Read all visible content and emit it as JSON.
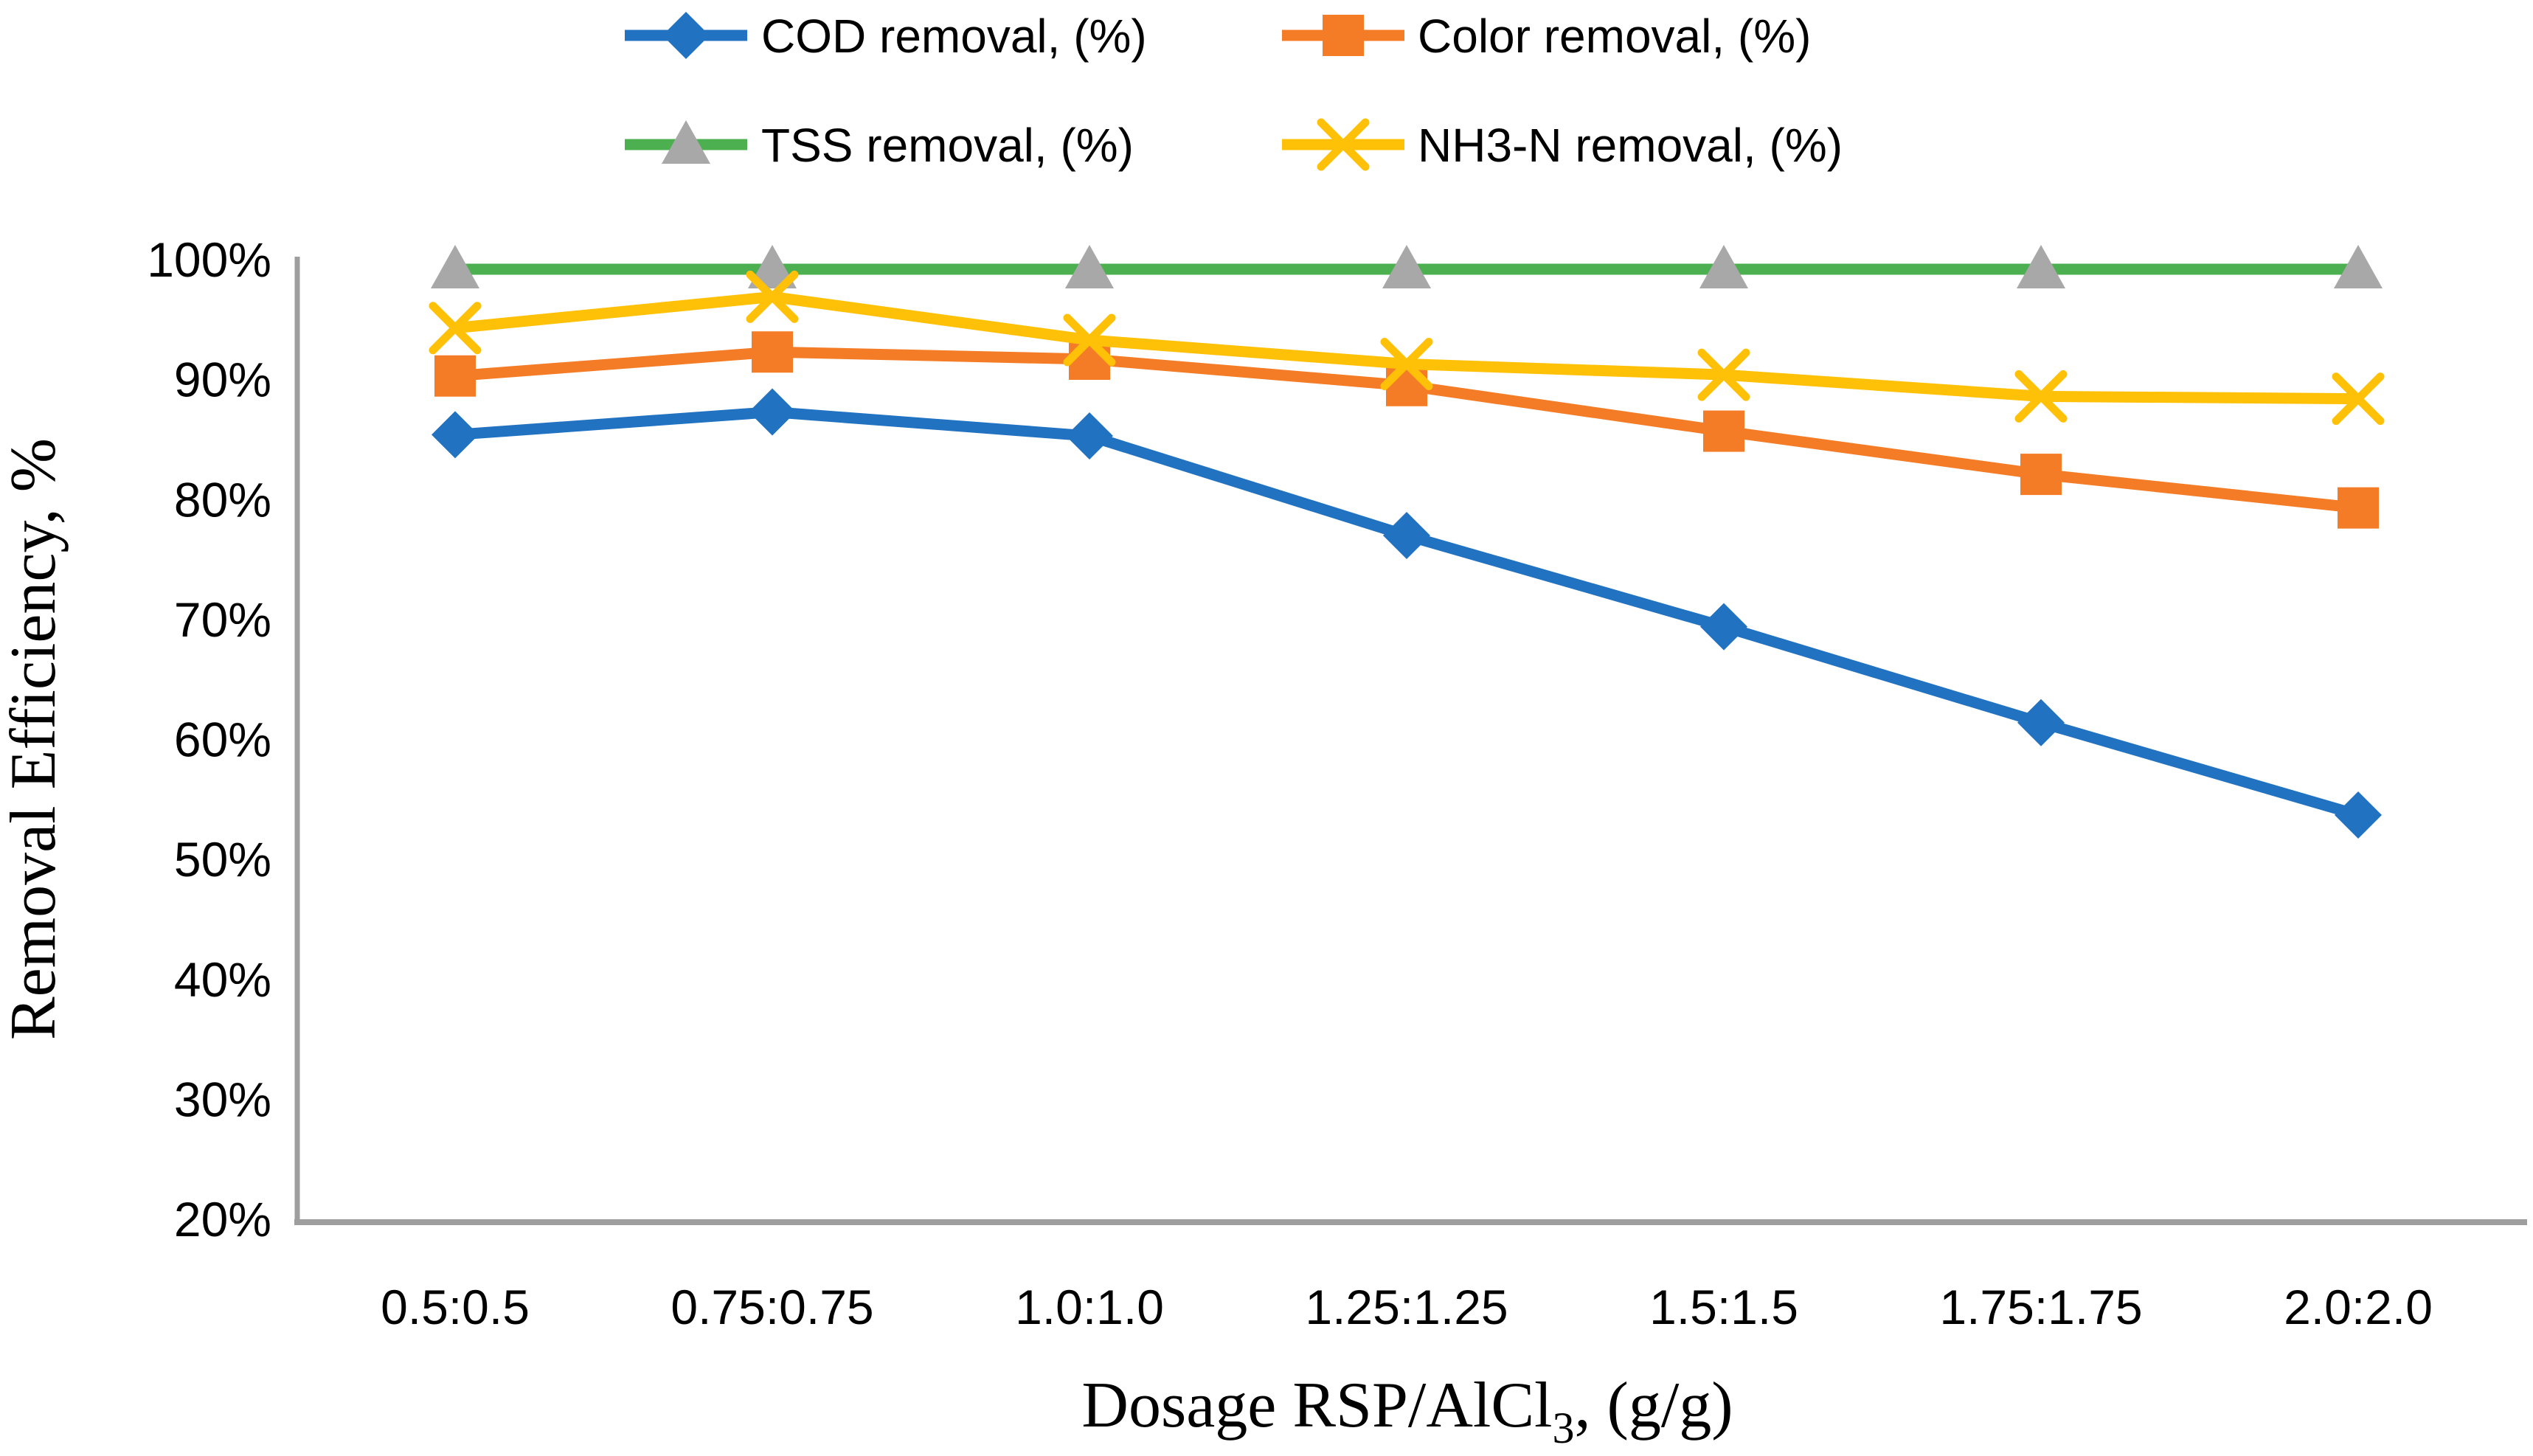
{
  "chart_data": {
    "type": "line",
    "title": "",
    "categories": [
      "0.5:0.5",
      "0.75:0.75",
      "1.0:1.0",
      "1.25:1.25",
      "1.5:1.5",
      "1.75:1.75",
      "2.0:2.0"
    ],
    "series": [
      {
        "name": "COD removal, (%)",
        "marker": "diamond",
        "color": "#2272C2",
        "marker_color": "#2272C2",
        "values": [
          85.4,
          87.3,
          85.3,
          77.0,
          69.4,
          61.4,
          53.7
        ]
      },
      {
        "name": "Color removal, (%)",
        "marker": "square",
        "color": "#F57C26",
        "marker_color": "#F57C26",
        "values": [
          90.3,
          92.3,
          91.7,
          89.5,
          85.7,
          82.1,
          79.3
        ]
      },
      {
        "name": "TSS removal, (%)",
        "marker": "triangle",
        "color": "#4CAF50",
        "marker_color": "#A8A8A8",
        "values": [
          99.2,
          99.2,
          99.2,
          99.2,
          99.2,
          99.2,
          99.2
        ]
      },
      {
        "name": "NH3-N removal, (%)",
        "marker": "x",
        "color": "#FFC107",
        "marker_color": "#FFC107",
        "values": [
          94.3,
          96.9,
          93.3,
          91.3,
          90.4,
          88.6,
          88.4
        ]
      }
    ],
    "xlabel": {
      "prefix": "Dosage RSP/AlCl",
      "sub": "3",
      "suffix": ", (g/g)"
    },
    "ylabel": "Removal Efficiency, %",
    "y_ticks": [
      "100%",
      "90%",
      "80%",
      "70%",
      "60%",
      "50%",
      "40%",
      "30%",
      "20%"
    ],
    "y_tick_values": [
      100,
      90,
      80,
      70,
      60,
      50,
      40,
      30,
      20
    ],
    "ylim": [
      20,
      100
    ],
    "grid": false,
    "legend_position": "top",
    "axis_color": "#9E9E9E",
    "text_color": "#000000",
    "background_color": "#FFFFFF"
  }
}
